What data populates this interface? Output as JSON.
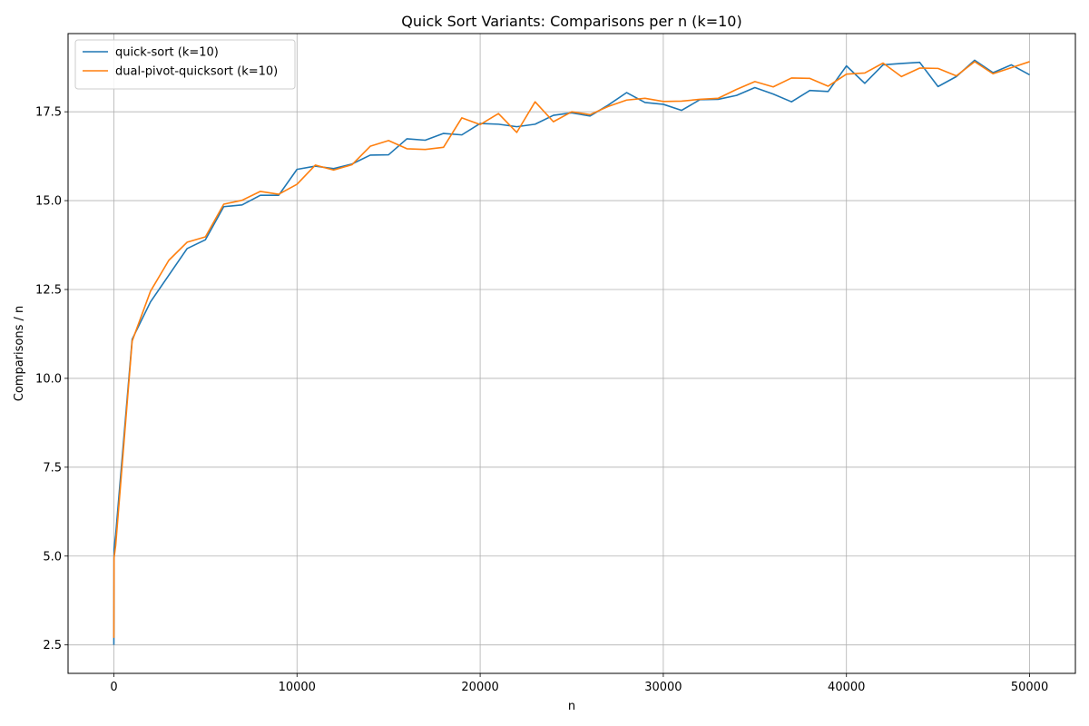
{
  "chart_data": {
    "type": "line",
    "title": "Quick Sort Variants: Comparisons per n (k=10)",
    "xlabel": "n",
    "ylabel": "Comparisons / n",
    "xlim": [
      -2500,
      52500
    ],
    "ylim": [
      1.7,
      19.7
    ],
    "xticks": [
      0,
      10000,
      20000,
      30000,
      40000,
      50000
    ],
    "yticks": [
      2.5,
      5.0,
      7.5,
      10.0,
      12.5,
      15.0,
      17.5
    ],
    "ytick_format": "one-decimal",
    "grid": true,
    "legend_position": "top-left",
    "x": [
      1,
      10,
      100,
      1000,
      2000,
      3000,
      4000,
      5000,
      6000,
      7000,
      8000,
      9000,
      10000,
      11000,
      12000,
      13000,
      14000,
      15000,
      16000,
      17000,
      18000,
      19000,
      20000,
      21000,
      22000,
      23000,
      24000,
      25000,
      26000,
      27000,
      28000,
      29000,
      30000,
      31000,
      32000,
      33000,
      34000,
      35000,
      36000,
      37000,
      38000,
      39000,
      40000,
      41000,
      42000,
      43000,
      44000,
      45000,
      46000,
      47000,
      48000,
      49000,
      50000
    ],
    "series": [
      {
        "name": "quick-sort (k=10)",
        "color": "#1f77b4",
        "values": [
          2.5,
          5.2,
          5.6,
          11.1,
          12.15,
          12.9,
          13.65,
          13.9,
          14.83,
          14.88,
          15.15,
          15.15,
          15.88,
          15.97,
          15.9,
          16.03,
          16.28,
          16.29,
          16.74,
          16.7,
          16.89,
          16.85,
          17.17,
          17.15,
          17.08,
          17.15,
          17.4,
          17.47,
          17.38,
          17.69,
          18.04,
          17.76,
          17.71,
          17.54,
          17.84,
          17.85,
          17.96,
          18.18,
          18.0,
          17.78,
          18.1,
          18.07,
          18.79,
          18.3,
          18.82,
          18.86,
          18.89,
          18.21,
          18.49,
          18.95,
          18.6,
          18.82,
          18.54
        ]
      },
      {
        "name": "dual-pivot-quicksort (k=10)",
        "color": "#ff7f0e",
        "values": [
          2.7,
          4.95,
          5.3,
          11.05,
          12.45,
          13.32,
          13.83,
          13.98,
          14.9,
          15.01,
          15.26,
          15.18,
          15.46,
          16.0,
          15.86,
          16.01,
          16.53,
          16.69,
          16.46,
          16.44,
          16.5,
          17.33,
          17.14,
          17.45,
          16.92,
          17.78,
          17.22,
          17.5,
          17.42,
          17.65,
          17.83,
          17.88,
          17.79,
          17.8,
          17.85,
          17.88,
          18.13,
          18.35,
          18.2,
          18.45,
          18.44,
          18.22,
          18.56,
          18.59,
          18.87,
          18.49,
          18.73,
          18.72,
          18.51,
          18.91,
          18.57,
          18.74,
          18.91
        ]
      }
    ]
  }
}
